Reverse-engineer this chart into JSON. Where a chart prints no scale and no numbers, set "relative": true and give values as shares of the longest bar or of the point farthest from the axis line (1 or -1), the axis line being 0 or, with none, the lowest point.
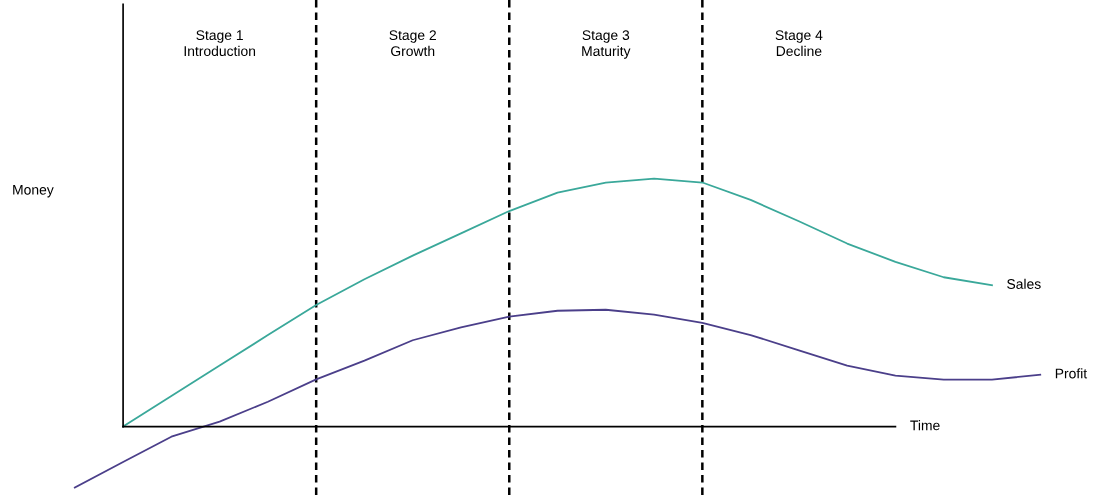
{
  "chart_data": {
    "type": "line",
    "relative": true,
    "xlabel": "Time",
    "ylabel": "Money",
    "categories": [
      null,
      null,
      null,
      null,
      null,
      null,
      null,
      null,
      null,
      null,
      null,
      null,
      null,
      null,
      null,
      null,
      null,
      null,
      null,
      null,
      null
    ],
    "series": [
      {
        "name": "Sales",
        "color": "#3aa89a",
        "values": [
          null,
          0,
          0.123,
          0.246,
          0.369,
          0.49,
          0.594,
          0.689,
          0.779,
          0.869,
          0.943,
          0.984,
          1.0,
          0.984,
          0.914,
          0.828,
          0.738,
          0.664,
          0.602,
          0.57,
          null
        ]
      },
      {
        "name": "Profit",
        "color": "#4b3f8a",
        "values": [
          -0.246,
          -0.143,
          -0.041,
          0.02,
          0.1,
          0.19,
          0.266,
          0.348,
          0.4,
          0.443,
          0.467,
          0.471,
          0.451,
          0.418,
          0.369,
          0.307,
          0.246,
          0.205,
          0.189,
          0.189,
          0.209
        ]
      }
    ],
    "annotations": [
      "Stage 1\nIntroduction",
      "Stage 2\nGrowth",
      "Stage 3\nMaturity",
      "Stage 4\nDecline"
    ],
    "legend": false,
    "grid": "x",
    "marker": "none",
    "line_style": "solid"
  }
}
